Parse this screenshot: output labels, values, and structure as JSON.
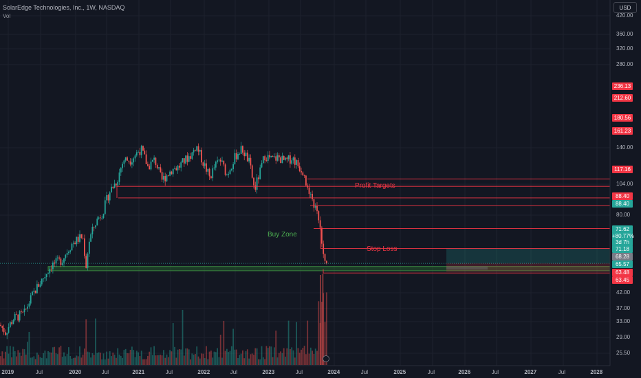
{
  "header": {
    "title": "SolarEdge Technologies, Inc., 1W, NASDAQ",
    "volume_label": "Vol",
    "currency_button": "USD"
  },
  "annotations": {
    "buy_zone": "Buy Zone",
    "profit_targets": "Profit Targets",
    "stop_loss": "Stop Loss"
  },
  "colors": {
    "background": "#131722",
    "up": "#26a69a",
    "down": "#ef5350",
    "level_line": "#f23645",
    "zone_fill": "#1b5e20"
  },
  "chart_data": {
    "type": "candlestick",
    "y_scale": "log",
    "ylim": [
      23,
      460
    ],
    "x_ticks": [
      "2019",
      "Jul",
      "2020",
      "Jul",
      "2021",
      "Jul",
      "2022",
      "Jul",
      "2023",
      "Jul",
      "2024",
      "Jul",
      "2025",
      "Jul",
      "2026",
      "Jul",
      "2027",
      "Jul",
      "2028"
    ],
    "y_ticks": [
      "420.00",
      "360.00",
      "320.00",
      "280.00",
      "140.00",
      "104.00",
      "80.00",
      "42.00",
      "37.00",
      "33.00",
      "29.00",
      "25.50"
    ],
    "horizontal_levels": [
      236.13,
      212.6,
      180.56,
      161.23,
      117.16,
      88.4
    ],
    "price_tags": [
      {
        "value": "236.13",
        "color": "#f23645"
      },
      {
        "value": "212.60",
        "color": "#f23645"
      },
      {
        "value": "180.56",
        "color": "#f23645"
      },
      {
        "value": "161.23",
        "color": "#f23645"
      },
      {
        "value": "117.16",
        "color": "#f23645"
      },
      {
        "value": "88.40",
        "color": "#f23645"
      },
      {
        "value": "88.40",
        "color": "#26a69a"
      },
      {
        "value": "71.62",
        "color": "#26a69a"
      },
      {
        "value": "+80.77%",
        "color": "#26a69a"
      },
      {
        "value": "3d 7h",
        "color": "#26a69a"
      },
      {
        "value": "71.18",
        "color": "#26a69a"
      },
      {
        "value": "68.28",
        "color": "#787b86"
      },
      {
        "value": "65.57",
        "color": "#26a69a"
      },
      {
        "value": "63.48",
        "color": "#f23645"
      },
      {
        "value": "63.45",
        "color": "#f23645"
      }
    ],
    "buy_zone_range": [
      64.5,
      68.5
    ],
    "stop_loss_level": 62.5,
    "current_price": 71.62
  }
}
